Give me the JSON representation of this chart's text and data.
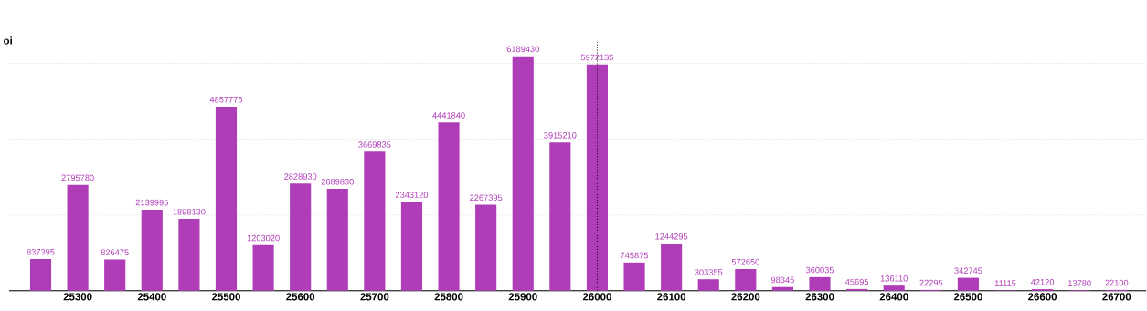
{
  "chart_data": {
    "type": "bar",
    "ylabel": "oi",
    "categories": [
      null,
      "25300",
      null,
      "25400",
      null,
      "25500",
      null,
      "25600",
      null,
      "25700",
      null,
      "25800",
      null,
      "25900",
      null,
      "26000",
      null,
      "26100",
      null,
      "26200",
      null,
      "26300",
      null,
      "26400",
      null,
      "26500",
      null,
      "26600",
      null,
      "26700"
    ],
    "values": [
      837395,
      2795780,
      826475,
      2139995,
      1898130,
      4857775,
      1203020,
      2828930,
      2689830,
      3669835,
      2343120,
      4441840,
      2267395,
      6189430,
      3915210,
      5972135,
      745875,
      1244295,
      303355,
      572650,
      98345,
      360035,
      45695,
      136110,
      22295,
      342745,
      11115,
      42120,
      13780,
      22100
    ],
    "color": "#b03db8",
    "data_labels": true,
    "yticks": [
      {
        "value": 2000000,
        "label": null
      },
      {
        "value": 4000000,
        "label": null
      },
      {
        "value": 6000000,
        "label": null
      }
    ],
    "tick_labels": "x",
    "grid": "y",
    "ref_lines": [
      {
        "axis": "x",
        "value": "26000",
        "color": "#000000",
        "line_style": "dotted"
      }
    ]
  }
}
